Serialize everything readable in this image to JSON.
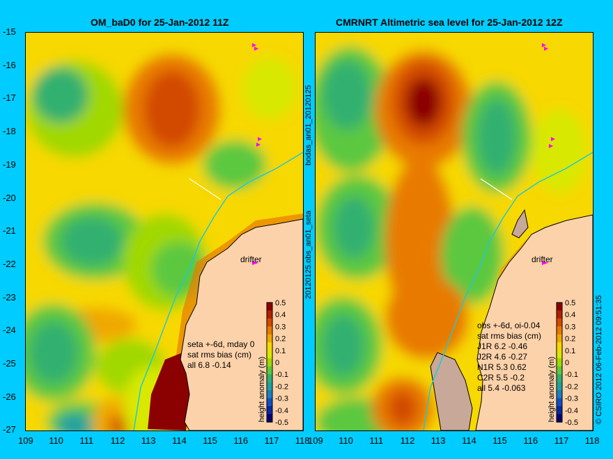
{
  "left": {
    "title": "OM_baD0 for 25-Jan-2012 11Z",
    "stats": [
      "seta +-6d, mday 0",
      "sat rms bias (cm)",
      "all 6.8 -0.14"
    ],
    "drifter_label": "drifter"
  },
  "right": {
    "title": "CMRNRT Altimetric sea level  for 25-Jan-2012 12Z",
    "stats": [
      "obs +-6d, oi-0.04",
      "sat rms bias (cm)",
      "J1R  6.2 -0.46",
      "J2R  4.6 -0.27",
      "N1R  5.3 0.62",
      "C2R  5.5 -0.2",
      "all 5.4 -0.063"
    ],
    "drifter_label": "drifter"
  },
  "y_labels": [
    "-15",
    "-16",
    "-17",
    "-18",
    "-19",
    "-20",
    "-21",
    "-22",
    "-23",
    "-24",
    "-25",
    "-26",
    "-27"
  ],
  "x_labels": [
    "109",
    "110",
    "111",
    "112",
    "113",
    "114",
    "115",
    "116",
    "117",
    "118"
  ],
  "colorbar": {
    "ticks": [
      "0.5",
      "0.4",
      "0.3",
      "0.2",
      "0.1",
      "0",
      "-0.1",
      "-0.2",
      "-0.3",
      "-0.4",
      "-0.5"
    ],
    "label": "height anomaly (m)",
    "colors": [
      "#8b0000",
      "#b22000",
      "#d24a00",
      "#e87a00",
      "#f0a800",
      "#f7d800",
      "#d8e800",
      "#a0d800",
      "#5cc840",
      "#30b070",
      "#20a0a0",
      "#1880c0",
      "#1050c0",
      "#0828a0",
      "#000070"
    ]
  },
  "side_labels": [
    "bodas_an01_20120125",
    "20120125.obs_an01_seta"
  ],
  "credit": "© CSIRO 2012  06-Feb-2012 09:51:35",
  "colors": {
    "background": "#00ccff",
    "land": "#fcd2aa",
    "coast": "#000000"
  }
}
